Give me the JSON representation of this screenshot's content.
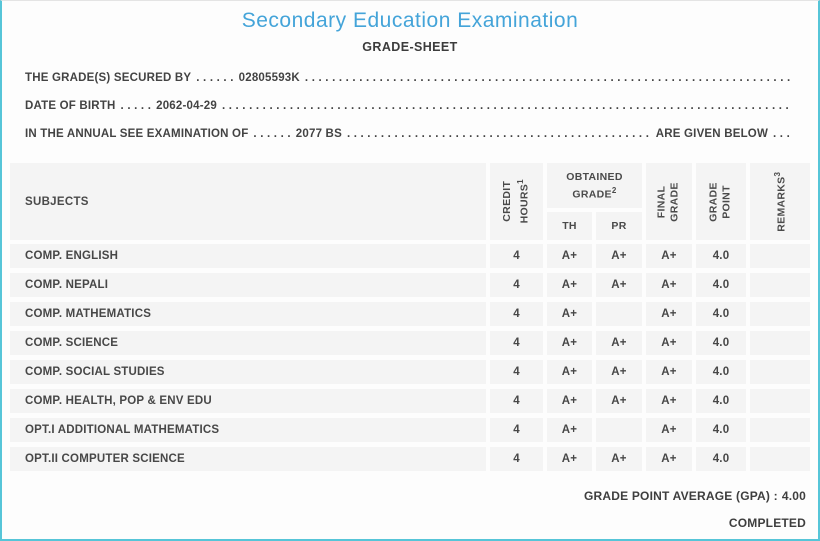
{
  "page": {
    "title": "Secondary Education Examination",
    "subtitle": "GRADE-SHEET",
    "accent_color": "#44a4d9",
    "border_color": "#56c5d8",
    "band_color": "#f4f4f4"
  },
  "info_lines": [
    {
      "label": "THE GRADE(S) SECURED BY",
      "lead_dots": ". . . . . .",
      "value": "02805593K",
      "fill_dots": ". . . . . . . . . . . . . . . . . . . . . . . . . . . . . . . . . . . . . . . . . . . . . . . . . . . . . . . . . . . . . . . . . . . . . . . . . . . . . . . . . . . .",
      "suffix": "",
      "end_dots": ""
    },
    {
      "label": "DATE OF BIRTH",
      "lead_dots": ". . . . .",
      "value": "2062-04-29",
      "fill_dots": ". . . . . . . . . . . . . . . . . . . . . . . . . . . . . . . . . . . . . . . . . . . . . . . . . . . . . . . . . . . . . . . . . . . . . . . . . . . . . . . . . . . .",
      "suffix": "",
      "end_dots": ""
    },
    {
      "label": "IN THE ANNUAL SEE EXAMINATION OF",
      "lead_dots": ". . . . . .",
      "value": "2077 BS",
      "fill_dots": ". . . . . . . . . . . . . . . . . . . . . . . . . . . . . . . . . . . . . . . . . . . . . . . . . . . . . . . . . . . . . . . . . . . . . . . . . . . . . . . . . . . .",
      "suffix": "ARE GIVEN BELOW",
      "end_dots": ". . ."
    }
  ],
  "table": {
    "headers": {
      "subjects": "SUBJECTS",
      "credit_line1": "CREDIT",
      "credit_line2": "HOURS",
      "credit_sup": "1",
      "obtained_line1": "OBTAINED",
      "obtained_line2": "GRADE",
      "obtained_sup": "2",
      "th": "TH",
      "pr": "PR",
      "final_line1": "FINAL",
      "final_line2": "GRADE",
      "gp_line1": "GRADE",
      "gp_line2": "POINT",
      "remarks": "REMARKS",
      "remarks_sup": "3"
    },
    "rows": [
      {
        "subject": "COMP. ENGLISH",
        "credit": "4",
        "th": "A+",
        "pr": "A+",
        "final": "A+",
        "gp": "4.0",
        "remarks": ""
      },
      {
        "subject": "COMP. NEPALI",
        "credit": "4",
        "th": "A+",
        "pr": "A+",
        "final": "A+",
        "gp": "4.0",
        "remarks": ""
      },
      {
        "subject": "COMP. MATHEMATICS",
        "credit": "4",
        "th": "A+",
        "pr": "",
        "final": "A+",
        "gp": "4.0",
        "remarks": ""
      },
      {
        "subject": "COMP. SCIENCE",
        "credit": "4",
        "th": "A+",
        "pr": "A+",
        "final": "A+",
        "gp": "4.0",
        "remarks": ""
      },
      {
        "subject": "COMP. SOCIAL STUDIES",
        "credit": "4",
        "th": "A+",
        "pr": "A+",
        "final": "A+",
        "gp": "4.0",
        "remarks": ""
      },
      {
        "subject": "COMP. HEALTH, POP & ENV EDU",
        "credit": "4",
        "th": "A+",
        "pr": "A+",
        "final": "A+",
        "gp": "4.0",
        "remarks": ""
      },
      {
        "subject": "OPT.I ADDITIONAL MATHEMATICS",
        "credit": "4",
        "th": "A+",
        "pr": "",
        "final": "A+",
        "gp": "4.0",
        "remarks": ""
      },
      {
        "subject": "OPT.II COMPUTER SCIENCE",
        "credit": "4",
        "th": "A+",
        "pr": "A+",
        "final": "A+",
        "gp": "4.0",
        "remarks": ""
      }
    ]
  },
  "footer": {
    "gpa_label": "GRADE POINT AVERAGE (GPA) :",
    "gpa_value": "4.00",
    "status": "COMPLETED"
  }
}
